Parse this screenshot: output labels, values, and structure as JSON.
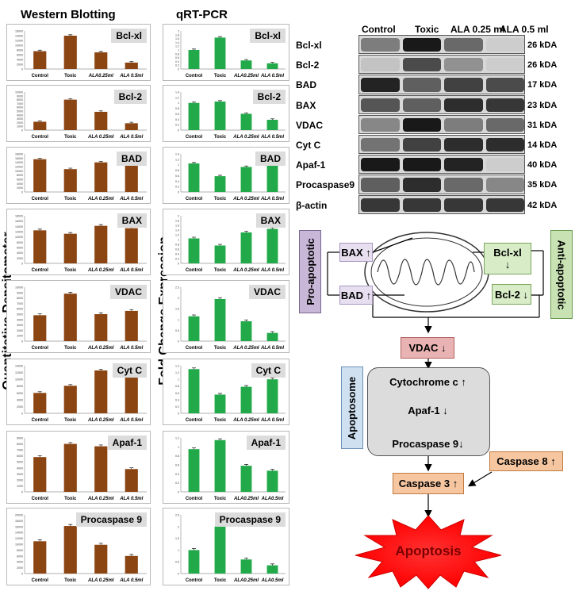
{
  "left_title": "Western Blotting",
  "mid_title": "qRT-PCR",
  "left_ylabel": "Quantitative Densitometer",
  "mid_ylabel": "Fold Change Expression",
  "colors": {
    "wb_bar": "#8b4513",
    "pcr_bar": "#22a94a",
    "error": "#333333"
  },
  "chart_data": [
    {
      "id": "wb-bclxl",
      "type": "bar",
      "title": "Bcl-xl",
      "categories": [
        "Control",
        "Toxic",
        "ALA0.25ml",
        "ALA 0.5ml"
      ],
      "values": [
        7500,
        14000,
        7000,
        2700
      ],
      "ylim": [
        0,
        16000
      ],
      "yticks": [
        "0",
        "2000",
        "4000",
        "6000",
        "8000",
        "10000",
        "12000",
        "14000",
        "16000"
      ]
    },
    {
      "id": "pcr-bclxl",
      "type": "bar",
      "title": "Bcl-xl",
      "categories": [
        "Control",
        "Toxic",
        "ALA0.25ml",
        "ALA 0.5ml"
      ],
      "values": [
        1.0,
        1.65,
        0.45,
        0.3
      ],
      "ylim": [
        0,
        2
      ],
      "yticks": [
        "0",
        "0.2",
        "0.4",
        "0.6",
        "0.8",
        "1",
        "1.2",
        "1.4",
        "1.6",
        "1.8",
        "2"
      ]
    },
    {
      "id": "wb-bcl2",
      "type": "bar",
      "title": "Bcl-2",
      "categories": [
        "Control",
        "Toxic",
        "ALA 0.25ml",
        "ALA 0.5ml"
      ],
      "values": [
        2200,
        8000,
        4800,
        1800
      ],
      "ylim": [
        0,
        10000
      ],
      "yticks": [
        "0",
        "1000",
        "2000",
        "3000",
        "4000",
        "5000",
        "6000",
        "7000",
        "8000",
        "9000",
        "10000"
      ]
    },
    {
      "id": "pcr-bcl2",
      "type": "bar",
      "title": "Bcl-2",
      "categories": [
        "Control",
        "Toxic",
        "ALA 0.25ml",
        "ALA 0.5ml"
      ],
      "values": [
        1.0,
        1.05,
        0.6,
        0.38
      ],
      "ylim": [
        0,
        1.4
      ],
      "yticks": [
        "0",
        "0.2",
        "0.4",
        "0.6",
        "0.8",
        "1",
        "1.2",
        "1.4"
      ]
    },
    {
      "id": "wb-bad",
      "type": "bar",
      "title": "BAD",
      "categories": [
        "Control",
        "Toxic",
        "ALA 0.25ml",
        "ALA 0.5ml"
      ],
      "values": [
        15500,
        10800,
        14000,
        12500
      ],
      "ylim": [
        0,
        18000
      ],
      "yticks": [
        "0",
        "2000",
        "4000",
        "6000",
        "8000",
        "10000",
        "12000",
        "14000",
        "16000",
        "18000"
      ]
    },
    {
      "id": "pcr-bad",
      "type": "bar",
      "title": "BAD",
      "categories": [
        "Control",
        "Toxic",
        "ALA 0.25ml",
        "ALA 0.5ml"
      ],
      "values": [
        1.05,
        0.58,
        0.92,
        1.05
      ],
      "ylim": [
        0,
        1.4
      ],
      "yticks": [
        "0",
        "0.2",
        "0.4",
        "0.6",
        "0.8",
        "1",
        "1.2",
        "1.4"
      ]
    },
    {
      "id": "wb-bax",
      "type": "bar",
      "title": "BAX",
      "categories": [
        "Control",
        "Toxic",
        "ALA 0.25ml",
        "ALA 0.5ml"
      ],
      "values": [
        12500,
        11200,
        14200,
        13300
      ],
      "ylim": [
        0,
        18000
      ],
      "yticks": [
        "0",
        "2000",
        "4000",
        "6000",
        "8000",
        "10000",
        "12000",
        "14000",
        "16000",
        "18000"
      ]
    },
    {
      "id": "pcr-bax",
      "type": "bar",
      "title": "BAX",
      "categories": [
        "Control",
        "Toxic",
        "ALA 0.25ml",
        "ALA 0.5ml"
      ],
      "values": [
        1.05,
        0.75,
        1.3,
        1.45
      ],
      "ylim": [
        0,
        2
      ],
      "yticks": [
        "0",
        "0.2",
        "0.4",
        "0.6",
        "0.8",
        "1",
        "1.2",
        "1.4",
        "1.6",
        "1.8",
        "2"
      ]
    },
    {
      "id": "wb-vdac",
      "type": "bar",
      "title": "VDAC",
      "categories": [
        "Control",
        "Toxic",
        "ALA 0.25ml",
        "ALA 0.5ml"
      ],
      "values": [
        4800,
        8800,
        5000,
        5600
      ],
      "ylim": [
        0,
        10000
      ],
      "yticks": [
        "0",
        "1000",
        "2000",
        "3000",
        "4000",
        "5000",
        "6000",
        "7000",
        "8000",
        "9000",
        "10000"
      ]
    },
    {
      "id": "pcr-vdac",
      "type": "bar",
      "title": "VDAC",
      "categories": [
        "Control",
        "Toxic",
        "ALA 0.25ml",
        "ALA 0.5ml"
      ],
      "values": [
        1.15,
        1.95,
        0.92,
        0.38
      ],
      "ylim": [
        0,
        2.5
      ],
      "yticks": [
        "0",
        "0.5",
        "1",
        "1.5",
        "2",
        "2.5"
      ]
    },
    {
      "id": "wb-cytc",
      "type": "bar",
      "title": "Cyt C",
      "categories": [
        "Control",
        "Toxic",
        "ALA 0.25ml",
        "ALA 0.5ml"
      ],
      "values": [
        6000,
        8100,
        12600,
        11800
      ],
      "ylim": [
        0,
        14000
      ],
      "yticks": [
        "0",
        "2000",
        "4000",
        "6000",
        "8000",
        "10000",
        "12000",
        "14000"
      ]
    },
    {
      "id": "pcr-cytc",
      "type": "bar",
      "title": "Cyt C",
      "categories": [
        "Control",
        "Toxic",
        "ALA 0.25ml",
        "ALA 0.5ml"
      ],
      "values": [
        1.3,
        0.55,
        0.78,
        1.0
      ],
      "ylim": [
        0,
        1.4
      ],
      "yticks": [
        "0",
        "0.2",
        "0.4",
        "0.6",
        "0.8",
        "1",
        "1.2",
        "1.4"
      ]
    },
    {
      "id": "wb-apaf1",
      "type": "bar",
      "title": "Apaf-1",
      "categories": [
        "Control",
        "Toxic",
        "ALA 0.25ml",
        "ALA 0.5ml"
      ],
      "values": [
        5800,
        8000,
        7600,
        3800
      ],
      "ylim": [
        0,
        9000
      ],
      "yticks": [
        "0",
        "1000",
        "2000",
        "3000",
        "4000",
        "5000",
        "6000",
        "7000",
        "8000",
        "9000"
      ]
    },
    {
      "id": "pcr-apaf1",
      "type": "bar",
      "title": "Apaf-1",
      "categories": [
        "Control",
        "Toxic",
        "ALA0.25ml",
        "ALA0.5ml"
      ],
      "values": [
        0.95,
        1.15,
        0.58,
        0.47
      ],
      "ylim": [
        0,
        1.2
      ],
      "yticks": [
        "0",
        "0.2",
        "0.4",
        "0.6",
        "0.8",
        "1",
        "1.2"
      ]
    },
    {
      "id": "wb-procasp9",
      "type": "bar",
      "title": "Procaspase 9",
      "categories": [
        "Control",
        "Toxic",
        "ALA 0.25ml",
        "ALA 0.5ml"
      ],
      "values": [
        11000,
        16200,
        9800,
        6000
      ],
      "ylim": [
        0,
        20000
      ],
      "yticks": [
        "0",
        "2000",
        "4000",
        "6000",
        "8000",
        "10000",
        "12000",
        "14000",
        "16000",
        "18000",
        "20000"
      ]
    },
    {
      "id": "pcr-procasp9",
      "type": "bar",
      "title": "Procaspase 9",
      "categories": [
        "Control",
        "Toxic",
        "ALA0.25ml",
        "ALA0.5ml"
      ],
      "values": [
        1.0,
        2.0,
        0.6,
        0.35
      ],
      "ylim": [
        0,
        2.5
      ],
      "yticks": [
        "0",
        "0.5",
        "1",
        "1.5",
        "2",
        "2.5"
      ]
    }
  ],
  "blot": {
    "columns": [
      "Control",
      "Toxic",
      "ALA 0.25 ml",
      "ALA 0.5 ml"
    ],
    "rows": [
      {
        "protein": "Bcl-xl",
        "kda": "26 kDA",
        "intensity": [
          0.45,
          0.95,
          0.55,
          0.05
        ]
      },
      {
        "protein": "Bcl-2",
        "kda": "26 kDA",
        "intensity": [
          0.1,
          0.7,
          0.35,
          0.05
        ]
      },
      {
        "protein": "BAD",
        "kda": "17 kDA",
        "intensity": [
          0.9,
          0.6,
          0.75,
          0.7
        ]
      },
      {
        "protein": "BAX",
        "kda": "23 kDA",
        "intensity": [
          0.65,
          0.6,
          0.85,
          0.8
        ]
      },
      {
        "protein": "VDAC",
        "kda": "31 kDA",
        "intensity": [
          0.4,
          0.95,
          0.45,
          0.55
        ]
      },
      {
        "protein": "Cyt C",
        "kda": "14 kDA",
        "intensity": [
          0.5,
          0.75,
          0.85,
          0.85
        ]
      },
      {
        "protein": "Apaf-1",
        "kda": "40 kDA",
        "intensity": [
          0.95,
          0.95,
          0.9,
          0.05
        ]
      },
      {
        "protein": "Procaspase9",
        "kda": "35 kDA",
        "intensity": [
          0.6,
          0.85,
          0.55,
          0.4
        ]
      },
      {
        "protein": "β-actin",
        "kda": "42  kDA",
        "intensity": [
          0.8,
          0.8,
          0.8,
          0.8
        ]
      }
    ]
  },
  "pathway": {
    "pro_apoptotic": "Pro-apoptotic",
    "anti_apoptotic": "Anti-apoptotic",
    "bax": "BAX ↑",
    "bad": "BAD ↑",
    "bclxl_line1": "Bcl-xl",
    "bclxl_line2": "↓",
    "bcl2": "Bcl-2 ↓",
    "vdac": "VDAC ↓",
    "apoptosome": "Apoptosome",
    "cytochrome": "Cytochrome c ↑",
    "apaf1": "Apaf-1 ↓",
    "procaspase9": "Procaspase 9↓",
    "caspase8": "Caspase 8 ↑",
    "caspase3": "Caspase 3 ↑",
    "apoptosis": "Apoptosis"
  }
}
